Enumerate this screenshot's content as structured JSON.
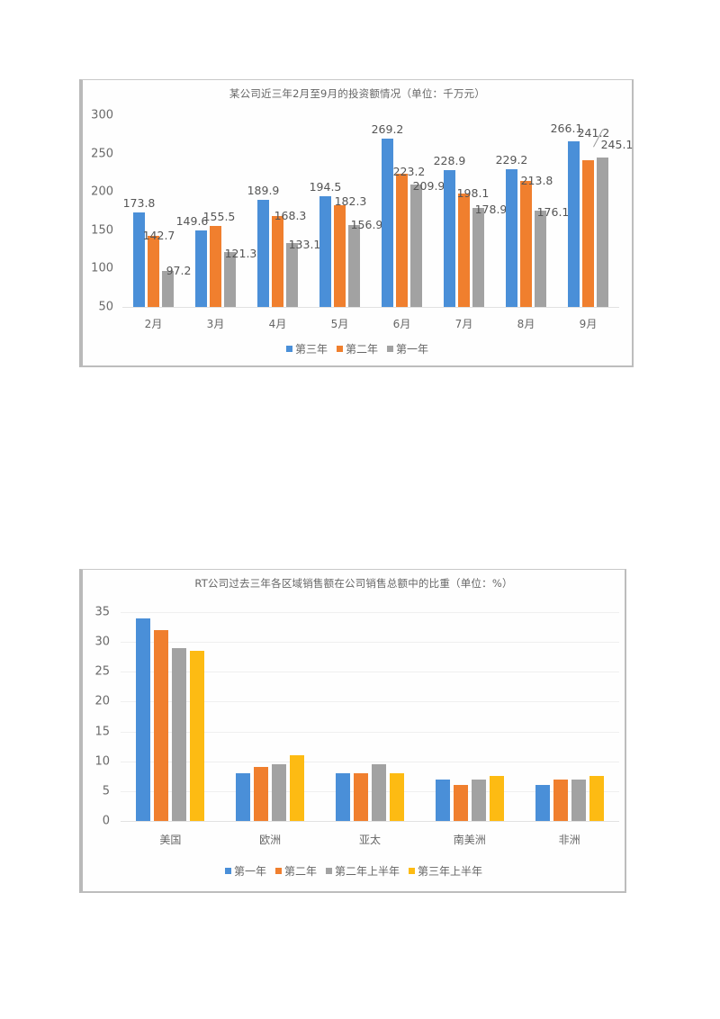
{
  "chart_data": [
    {
      "type": "bar",
      "title": "某公司近三年2月至9月的投资额情况（单位：千万元）",
      "xlabel": "",
      "ylabel": "",
      "ylim": [
        50,
        300
      ],
      "yticks": [
        300,
        250,
        200,
        150,
        100,
        50
      ],
      "grid": false,
      "legend_position": "bottom",
      "categories": [
        "2月",
        "3月",
        "4月",
        "5月",
        "6月",
        "7月",
        "8月",
        "9月"
      ],
      "series": [
        {
          "name": "第三年",
          "color": "#4a8fd8",
          "values": [
            173.8,
            149.6,
            189.9,
            194.5,
            269.2,
            228.9,
            229.2,
            266.1
          ]
        },
        {
          "name": "第二年",
          "color": "#f07f2e",
          "values": [
            142.7,
            155.5,
            168.3,
            182.3,
            223.2,
            198.1,
            213.8,
            241.2
          ]
        },
        {
          "name": "第一年",
          "color": "#a2a2a2",
          "values": [
            97.2,
            121.3,
            133.1,
            156.9,
            209.9,
            178.9,
            176.1,
            245.1
          ]
        }
      ],
      "data_labels": true
    },
    {
      "type": "bar",
      "title": "RT公司过去三年各区域销售额在公司销售总额中的比重（单位：%）",
      "xlabel": "",
      "ylabel": "",
      "ylim": [
        0,
        35
      ],
      "yticks": [
        35,
        30,
        25,
        20,
        15,
        10,
        5,
        0
      ],
      "grid": true,
      "legend_position": "bottom",
      "categories": [
        "美国",
        "欧洲",
        "亚太",
        "南美洲",
        "非洲"
      ],
      "series": [
        {
          "name": "第一年",
          "color": "#4a8fd8",
          "values": [
            34,
            8,
            8,
            7,
            6
          ]
        },
        {
          "name": "第二年",
          "color": "#f07f2e",
          "values": [
            32,
            9,
            8,
            6,
            7
          ]
        },
        {
          "name": "第二年上半年",
          "color": "#a2a2a2",
          "values": [
            29,
            9.5,
            9.5,
            7,
            7
          ]
        },
        {
          "name": "第三年上半年",
          "color": "#fdbb13",
          "values": [
            28.5,
            11,
            8,
            7.5,
            7.5
          ]
        }
      ],
      "data_labels": false
    }
  ]
}
